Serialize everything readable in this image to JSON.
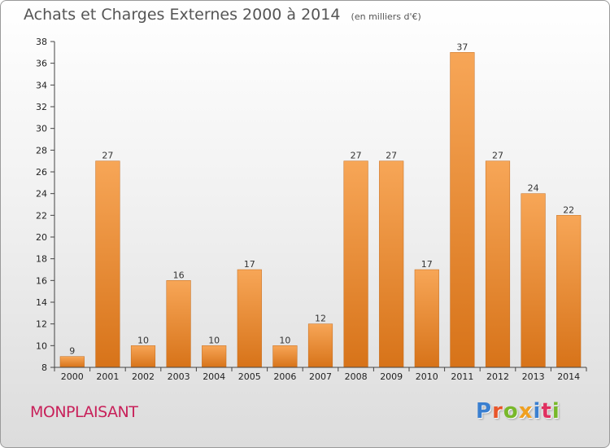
{
  "title": {
    "main": "Achats et Charges Externes 2000 à 2014",
    "unit": "(en milliers d'€)"
  },
  "commune": "MONPLAISANT",
  "brand": {
    "text": "Proxiti",
    "colors": [
      "#3a7fd0",
      "#e8562a",
      "#78b82a",
      "#f0a020",
      "#3a7fd0",
      "#e03060",
      "#78b82a"
    ]
  },
  "colors": {
    "bar_light": "#f7a657",
    "bar_dark": "#d77319",
    "title": "#555555",
    "commune": "#c8215a"
  },
  "chart_data": {
    "type": "bar",
    "categories": [
      "2000",
      "2001",
      "2002",
      "2003",
      "2004",
      "2005",
      "2006",
      "2007",
      "2008",
      "2009",
      "2010",
      "2011",
      "2012",
      "2013",
      "2014"
    ],
    "values": [
      9,
      27,
      10,
      16,
      10,
      17,
      10,
      12,
      27,
      27,
      17,
      37,
      27,
      24,
      22
    ],
    "title": "Achats et Charges Externes 2000 à 2014",
    "xlabel": "",
    "ylabel": "",
    "ylim": [
      8,
      38
    ],
    "yticks": [
      8,
      10,
      12,
      14,
      16,
      18,
      20,
      22,
      24,
      26,
      28,
      30,
      32,
      34,
      36,
      38
    ],
    "grid": false,
    "legend": "none"
  }
}
